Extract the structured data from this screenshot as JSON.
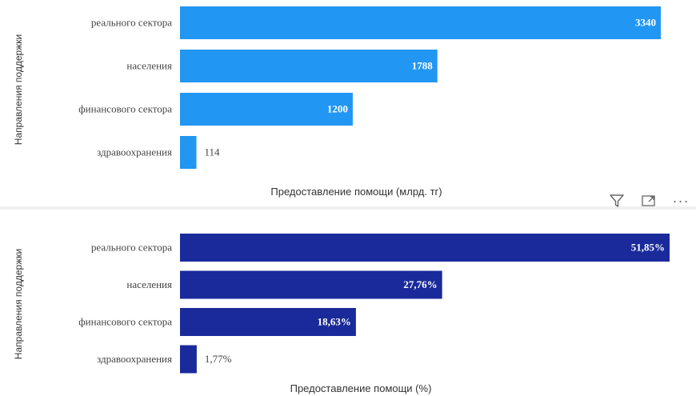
{
  "chart_data": [
    {
      "type": "bar",
      "orientation": "horizontal",
      "title": "",
      "categories": [
        "реального сектора",
        "населения",
        "финансового сектора",
        "здравоохранения"
      ],
      "values": [
        3340,
        1788,
        1200,
        114
      ],
      "value_labels": [
        "3340",
        "1788",
        "1200",
        "114"
      ],
      "xlabel": "Предоставление помощи (млрд. тг)",
      "ylabel": "Направления поддержки",
      "xlim": [
        0,
        3340
      ],
      "color": "#2196f3",
      "grid": false
    },
    {
      "type": "bar",
      "orientation": "horizontal",
      "title": "",
      "categories": [
        "реального сектора",
        "населения",
        "финансового сектора",
        "здравоохранения"
      ],
      "values": [
        51.85,
        27.76,
        18.63,
        1.77
      ],
      "value_labels": [
        "51,85%",
        "27,76%",
        "18,63%",
        "1,77%"
      ],
      "xlabel": "Предоставление помощи (%)",
      "ylabel": "Направления поддержки",
      "xlim": [
        0,
        51.85
      ],
      "color": "#1a2a9a",
      "grid": false
    }
  ],
  "toolbar": {
    "icons": [
      "filter-icon",
      "focus-mode-icon",
      "more-options-icon"
    ],
    "more_label": "···"
  }
}
